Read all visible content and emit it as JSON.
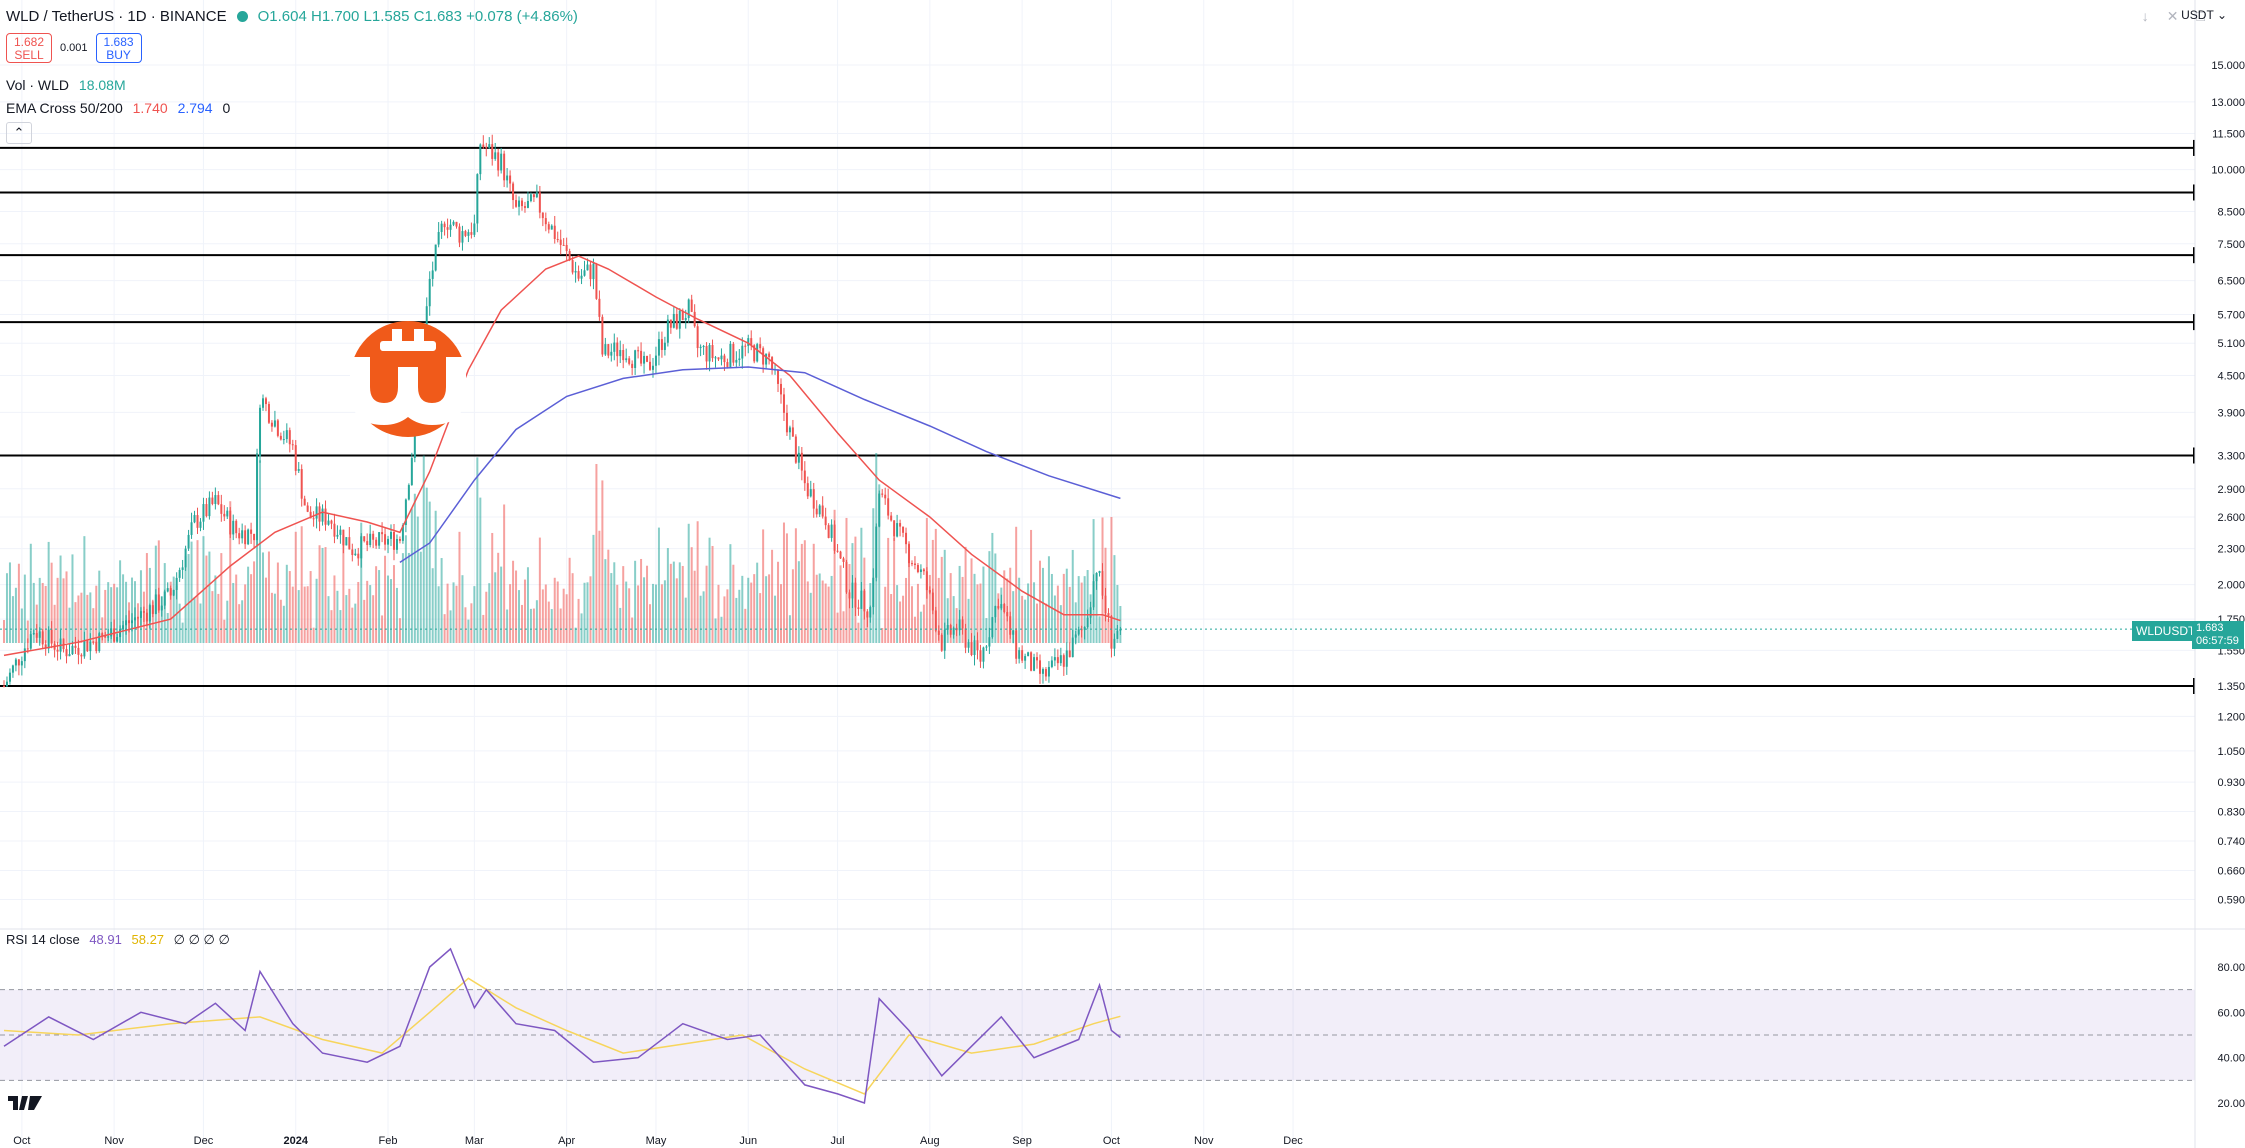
{
  "header": {
    "symbol": "WLD / TetherUS · 1D · BINANCE",
    "open": "O1.604",
    "high": "H1.700",
    "low": "L1.585",
    "close": "C1.683",
    "change": "+0.078 (+4.86%)"
  },
  "trade": {
    "sell_price": "1.682",
    "sell_label": "SELL",
    "spread": "0.001",
    "buy_price": "1.683",
    "buy_label": "BUY"
  },
  "indicators": {
    "volume": {
      "label": "Vol · WLD",
      "value": "18.08M"
    },
    "ema": {
      "label": "EMA Cross 50/200",
      "v1": "1.740",
      "v2": "2.794",
      "v3": "0"
    },
    "rsi": {
      "label": "RSI 14 close",
      "v1": "48.91",
      "v2": "58.27",
      "rest": "∅ ∅ ∅ ∅"
    }
  },
  "currency": "USDT",
  "last_symbol": "WLDUSDT",
  "last_price": "1.683",
  "countdown": "06:57:59",
  "colors": {
    "up": "#26a69a",
    "down": "#ef5350",
    "ema50": "#ef5350",
    "ema200": "#5b5fd6",
    "rsi": "#7e57c2",
    "rsi_ma": "#f7d55c"
  },
  "chart_data": {
    "type": "candlestick",
    "interval": "1D",
    "price_scale": "log",
    "price_ticks": [
      "15.000",
      "13.000",
      "11.500",
      "10.000",
      "8.500",
      "7.500",
      "6.500",
      "5.700",
      "5.100",
      "4.500",
      "3.900",
      "3.300",
      "2.900",
      "2.600",
      "2.300",
      "2.000",
      "1.750",
      "1.550",
      "1.350",
      "1.200",
      "1.050",
      "0.930",
      "0.830",
      "0.740",
      "0.660",
      "0.590"
    ],
    "level_lines": [
      "10.875",
      "9.150",
      "7.175",
      "5.535",
      "3.300",
      "1.350"
    ],
    "x_labels": [
      "Oct",
      "Nov",
      "Dec",
      "2024",
      "Feb",
      "Mar",
      "Apr",
      "May",
      "Jun",
      "Jul",
      "Aug",
      "Sep",
      "Oct",
      "Nov",
      "Dec"
    ],
    "price_path": [
      [
        "2023-09-25",
        1.35
      ],
      [
        "2023-10-05",
        1.68
      ],
      [
        "2023-10-15",
        1.55
      ],
      [
        "2023-10-28",
        1.62
      ],
      [
        "2023-11-10",
        1.78
      ],
      [
        "2023-11-20",
        1.92
      ],
      [
        "2023-11-28",
        2.55
      ],
      [
        "2023-12-05",
        2.75
      ],
      [
        "2023-12-12",
        2.45
      ],
      [
        "2023-12-18",
        2.45
      ],
      [
        "2023-12-20",
        4.15
      ],
      [
        "2023-12-26",
        3.7
      ],
      [
        "2023-12-31",
        3.4
      ],
      [
        "2024-01-05",
        2.6
      ],
      [
        "2024-01-12",
        2.6
      ],
      [
        "2024-01-20",
        2.3
      ],
      [
        "2024-01-28",
        2.35
      ],
      [
        "2024-02-05",
        2.4
      ],
      [
        "2024-02-10",
        3.6
      ],
      [
        "2024-02-15",
        6.5
      ],
      [
        "2024-02-20",
        8.3
      ],
      [
        "2024-02-25",
        7.8
      ],
      [
        "2024-03-01",
        8.0
      ],
      [
        "2024-03-03",
        11.1
      ],
      [
        "2024-03-10",
        10.3
      ],
      [
        "2024-03-15",
        8.5
      ],
      [
        "2024-03-22",
        8.8
      ],
      [
        "2024-03-28",
        7.8
      ],
      [
        "2024-04-05",
        6.6
      ],
      [
        "2024-04-10",
        6.8
      ],
      [
        "2024-04-13",
        4.9
      ],
      [
        "2024-04-20",
        5.0
      ],
      [
        "2024-04-28",
        4.6
      ],
      [
        "2024-05-05",
        5.4
      ],
      [
        "2024-05-12",
        5.8
      ],
      [
        "2024-05-15",
        5.0
      ],
      [
        "2024-05-22",
        4.8
      ],
      [
        "2024-06-01",
        5.0
      ],
      [
        "2024-06-08",
        4.8
      ],
      [
        "2024-06-15",
        3.6
      ],
      [
        "2024-06-20",
        2.95
      ],
      [
        "2024-06-27",
        2.6
      ],
      [
        "2024-07-05",
        1.95
      ],
      [
        "2024-07-12",
        1.82
      ],
      [
        "2024-07-15",
        2.85
      ],
      [
        "2024-07-22",
        2.4
      ],
      [
        "2024-07-30",
        2.05
      ],
      [
        "2024-08-05",
        1.6
      ],
      [
        "2024-08-10",
        1.7
      ],
      [
        "2024-08-18",
        1.5
      ],
      [
        "2024-08-24",
        1.9
      ],
      [
        "2024-08-30",
        1.55
      ],
      [
        "2024-09-08",
        1.4
      ],
      [
        "2024-09-15",
        1.5
      ],
      [
        "2024-09-22",
        1.7
      ],
      [
        "2024-09-26",
        2.15
      ],
      [
        "2024-10-01",
        1.62
      ],
      [
        "2024-10-04",
        1.683
      ]
    ],
    "ema50": [
      [
        "2023-09-25",
        1.52
      ],
      [
        "2023-10-20",
        1.6
      ],
      [
        "2023-11-20",
        1.75
      ],
      [
        "2023-12-10",
        2.15
      ],
      [
        "2023-12-25",
        2.45
      ],
      [
        "2024-01-10",
        2.65
      ],
      [
        "2024-01-25",
        2.55
      ],
      [
        "2024-02-05",
        2.45
      ],
      [
        "2024-02-15",
        3.1
      ],
      [
        "2024-02-28",
        4.6
      ],
      [
        "2024-03-10",
        5.8
      ],
      [
        "2024-03-25",
        6.8
      ],
      [
        "2024-04-05",
        7.15
      ],
      [
        "2024-04-15",
        6.8
      ],
      [
        "2024-05-01",
        6.1
      ],
      [
        "2024-05-15",
        5.6
      ],
      [
        "2024-06-01",
        5.1
      ],
      [
        "2024-06-15",
        4.5
      ],
      [
        "2024-07-01",
        3.6
      ],
      [
        "2024-07-15",
        3.0
      ],
      [
        "2024-08-01",
        2.6
      ],
      [
        "2024-08-15",
        2.25
      ],
      [
        "2024-09-01",
        1.95
      ],
      [
        "2024-09-15",
        1.78
      ],
      [
        "2024-09-28",
        1.78
      ],
      [
        "2024-10-04",
        1.74
      ]
    ],
    "ema200": [
      [
        "2024-02-05",
        2.18
      ],
      [
        "2024-02-15",
        2.35
      ],
      [
        "2024-03-01",
        3.0
      ],
      [
        "2024-03-15",
        3.65
      ],
      [
        "2024-04-01",
        4.15
      ],
      [
        "2024-04-20",
        4.45
      ],
      [
        "2024-05-10",
        4.6
      ],
      [
        "2024-06-01",
        4.65
      ],
      [
        "2024-06-20",
        4.55
      ],
      [
        "2024-07-10",
        4.1
      ],
      [
        "2024-08-01",
        3.7
      ],
      [
        "2024-08-20",
        3.35
      ],
      [
        "2024-09-10",
        3.05
      ],
      [
        "2024-10-04",
        2.794
      ]
    ],
    "rsi": {
      "levels": [
        "80.00",
        "60.00",
        "40.00",
        "20.00"
      ],
      "bands": [
        70,
        50,
        30
      ],
      "rsi_path": [
        [
          "2023-09-25",
          45
        ],
        [
          "2023-10-10",
          58
        ],
        [
          "2023-10-25",
          48
        ],
        [
          "2023-11-10",
          60
        ],
        [
          "2023-11-25",
          55
        ],
        [
          "2023-12-05",
          64
        ],
        [
          "2023-12-15",
          52
        ],
        [
          "2023-12-20",
          78
        ],
        [
          "2023-12-31",
          55
        ],
        [
          "2024-01-10",
          42
        ],
        [
          "2024-01-25",
          38
        ],
        [
          "2024-02-05",
          45
        ],
        [
          "2024-02-15",
          80
        ],
        [
          "2024-02-22",
          88
        ],
        [
          "2024-03-01",
          62
        ],
        [
          "2024-03-05",
          70
        ],
        [
          "2024-03-15",
          55
        ],
        [
          "2024-03-28",
          52
        ],
        [
          "2024-04-10",
          38
        ],
        [
          "2024-04-25",
          40
        ],
        [
          "2024-05-10",
          55
        ],
        [
          "2024-05-25",
          48
        ],
        [
          "2024-06-05",
          50
        ],
        [
          "2024-06-20",
          28
        ],
        [
          "2024-07-01",
          24
        ],
        [
          "2024-07-10",
          20
        ],
        [
          "2024-07-15",
          66
        ],
        [
          "2024-07-25",
          52
        ],
        [
          "2024-08-05",
          32
        ],
        [
          "2024-08-15",
          45
        ],
        [
          "2024-08-25",
          58
        ],
        [
          "2024-09-05",
          40
        ],
        [
          "2024-09-20",
          48
        ],
        [
          "2024-09-27",
          72
        ],
        [
          "2024-10-01",
          52
        ],
        [
          "2024-10-04",
          48.91
        ]
      ],
      "rsi_ma_path": [
        [
          "2023-09-25",
          52
        ],
        [
          "2023-10-20",
          50
        ],
        [
          "2023-11-20",
          55
        ],
        [
          "2023-12-20",
          58
        ],
        [
          "2024-01-10",
          48
        ],
        [
          "2024-01-30",
          42
        ],
        [
          "2024-02-15",
          60
        ],
        [
          "2024-02-28",
          75
        ],
        [
          "2024-03-15",
          62
        ],
        [
          "2024-04-01",
          52
        ],
        [
          "2024-04-20",
          42
        ],
        [
          "2024-05-10",
          46
        ],
        [
          "2024-05-30",
          50
        ],
        [
          "2024-06-20",
          35
        ],
        [
          "2024-07-10",
          24
        ],
        [
          "2024-07-25",
          50
        ],
        [
          "2024-08-15",
          42
        ],
        [
          "2024-09-05",
          46
        ],
        [
          "2024-09-25",
          55
        ],
        [
          "2024-10-04",
          58.27
        ]
      ]
    }
  }
}
